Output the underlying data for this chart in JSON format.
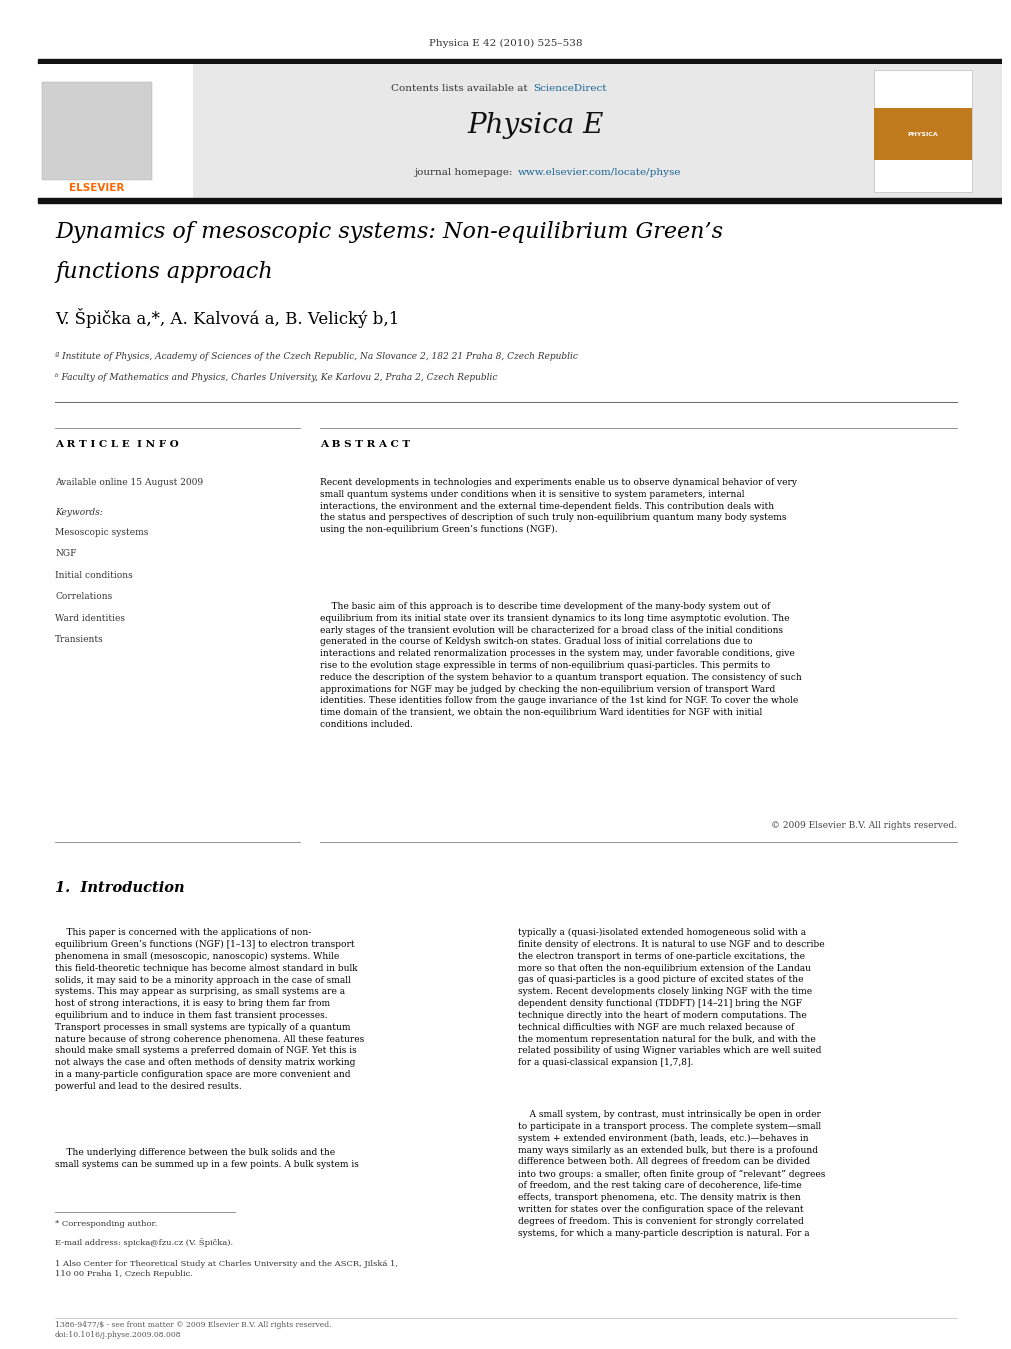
{
  "page_width": 9.92,
  "page_height": 13.23,
  "background_color": "#ffffff",
  "top_label": "Physica E 42 (2010) 525–538",
  "header_bg": "#e8e8e8",
  "contents_text": "Contents lists available at ",
  "sciencedirect_text": "ScienceDirect",
  "sciencedirect_color": "#1a6496",
  "journal_name": "Physica E",
  "journal_homepage_prefix": "journal homepage: ",
  "journal_url": "www.elsevier.com/locate/physe",
  "journal_url_color": "#1a6496",
  "elsevier_color": "#ff6600",
  "article_title_line1": "Dynamics of mesoscopic systems: Non-equilibrium Green’s",
  "article_title_line2": "functions approach",
  "authors": "V. Špička a,*, A. Kalvová a, B. Velický b,1",
  "affil_a": "ª Institute of Physics, Academy of Sciences of the Czech Republic, Na Slovance 2, 182 21 Praha 8, Czech Republic",
  "affil_b": "ᵇ Faculty of Mathematics and Physics, Charles University, Ke Karlovu 2, Praha 2, Czech Republic",
  "article_info_header": "A R T I C L E  I N F O",
  "available_online": "Available online 15 August 2009",
  "keywords_header": "Keywords:",
  "keywords": [
    "Mesoscopic systems",
    "NGF",
    "Initial conditions",
    "Correlations",
    "Ward identities",
    "Transients"
  ],
  "abstract_header": "A B S T R A C T",
  "abstract_p1": "Recent developments in technologies and experiments enable us to observe dynamical behavior of very\nsmall quantum systems under conditions when it is sensitive to system parameters, internal\ninteractions, the environment and the external time-dependent fields. This contribution deals with\nthe status and perspectives of description of such truly non-equilibrium quantum many body systems\nusing the non-equilibrium Green’s functions (NGF).",
  "abstract_p2": "    The basic aim of this approach is to describe time development of the many-body system out of\nequilibrium from its initial state over its transient dynamics to its long time asymptotic evolution. The\nearly stages of the transient evolution will be characterized for a broad class of the initial conditions\ngenerated in the course of Keldysh switch-on states. Gradual loss of initial correlations due to\ninteractions and related renormalization processes in the system may, under favorable conditions, give\nrise to the evolution stage expressible in terms of non-equilibrium quasi-particles. This permits to\nreduce the description of the system behavior to a quantum transport equation. The consistency of such\napproximations for NGF may be judged by checking the non-equilibrium version of transport Ward\nidentities. These identities follow from the gauge invariance of the 1st kind for NGF. To cover the whole\ntime domain of the transient, we obtain the non-equilibrium Ward identities for NGF with initial\nconditions included.",
  "copyright": "© 2009 Elsevier B.V. All rights reserved.",
  "section1_num": "1.",
  "section1_title": "Introduction",
  "intro_col1_p1": "    This paper is concerned with the applications of non-\nequilibrium Green’s functions (NGF) [1–13] to electron transport\nphenomena in small (mesoscopic, nanoscopic) systems. While\nthis field-theoretic technique has become almost standard in bulk\nsolids, it may said to be a minority approach in the case of small\nsystems. This may appear as surprising, as small systems are a\nhost of strong interactions, it is easy to bring them far from\nequilibrium and to induce in them fast transient processes.\nTransport processes in small systems are typically of a quantum\nnature because of strong coherence phenomena. All these features\nshould make small systems a preferred domain of NGF. Yet this is\nnot always the case and often methods of density matrix working\nin a many-particle configuration space are more convenient and\npowerful and lead to the desired results.",
  "intro_col1_p2": "    The underlying difference between the bulk solids and the\nsmall systems can be summed up in a few points. A bulk system is",
  "intro_col2_p1": "typically a (quasi-)isolated extended homogeneous solid with a\nfinite density of electrons. It is natural to use NGF and to describe\nthe electron transport in terms of one-particle excitations, the\nmore so that often the non-equilibrium extension of the Landau\ngas of quasi-particles is a good picture of excited states of the\nsystem. Recent developments closely linking NGF with the time\ndependent density functional (TDDFT) [14–21] bring the NGF\ntechnique directly into the heart of modern computations. The\ntechnical difficulties with NGF are much relaxed because of\nthe momentum representation natural for the bulk, and with the\nrelated possibility of using Wigner variables which are well suited\nfor a quasi-classical expansion [1,7,8].",
  "intro_col2_p2": "    A small system, by contrast, must intrinsically be open in order\nto participate in a transport process. The complete system—small\nsystem + extended environment (bath, leads, etc.)—behaves in\nmany ways similarly as an extended bulk, but there is a profound\ndifference between both. All degrees of freedom can be divided\ninto two groups: a smaller, often finite group of “relevant” degrees\nof freedom, and the rest taking care of decoherence, life-time\neffects, transport phenomena, etc. The density matrix is then\nwritten for states over the configuration space of the relevant\ndegrees of freedom. This is convenient for strongly correlated\nsystems, for which a many-particle description is natural. For a",
  "footnote1": "* Corresponding author.",
  "footnote2": "E-mail address: spicka@fzu.cz (V. Špička).",
  "footnote3": "1 Also Center for Theoretical Study at Charles University and the ASCR, Jilská 1,\n110 00 Praha 1, Czech Republic.",
  "footer_text": "1386-9477/$ - see front matter © 2009 Elsevier B.V. All rights reserved.\ndoi:10.1016/j.physe.2009.08.008"
}
